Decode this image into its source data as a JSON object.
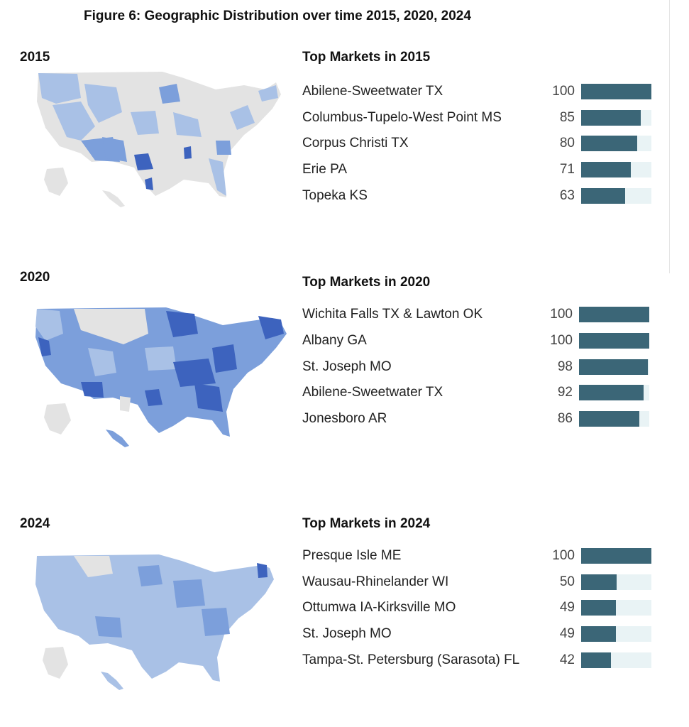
{
  "figure_title": "Figure 6: Geographic Distribution over time 2015, 2020, 2024",
  "colors": {
    "bar_fill": "#3b6677",
    "bar_track": "#e9f3f5",
    "map_light": "#a9c1e6",
    "map_mid": "#7c9fdb",
    "map_dark": "#3d63be",
    "map_none": "#e3e3e3"
  },
  "chart_data": [
    {
      "type": "bar",
      "year_label": "2015",
      "title": "Top Markets in 2015",
      "categories": [
        "Abilene-Sweetwater TX",
        "Columbus-Tupelo-West Point MS",
        "Corpus Christi TX",
        "Erie PA",
        "Topeka KS"
      ],
      "values": [
        100,
        85,
        80,
        71,
        63
      ],
      "xlim": [
        0,
        100
      ]
    },
    {
      "type": "bar",
      "year_label": "2020",
      "title": "Top Markets in 2020",
      "categories": [
        "Wichita Falls TX & Lawton OK",
        "Albany GA",
        "St. Joseph MO",
        "Abilene-Sweetwater TX",
        "Jonesboro AR"
      ],
      "values": [
        100,
        100,
        98,
        92,
        86
      ],
      "xlim": [
        0,
        100
      ]
    },
    {
      "type": "bar",
      "year_label": "2024",
      "title": "Top Markets in 2024",
      "categories": [
        "Presque Isle ME",
        "Wausau-Rhinelander WI",
        "Ottumwa IA-Kirksville MO",
        "St. Joseph MO",
        "Tampa-St. Petersburg (Sarasota) FL"
      ],
      "values": [
        100,
        50,
        49,
        49,
        42
      ],
      "xlim": [
        0,
        100
      ]
    }
  ]
}
